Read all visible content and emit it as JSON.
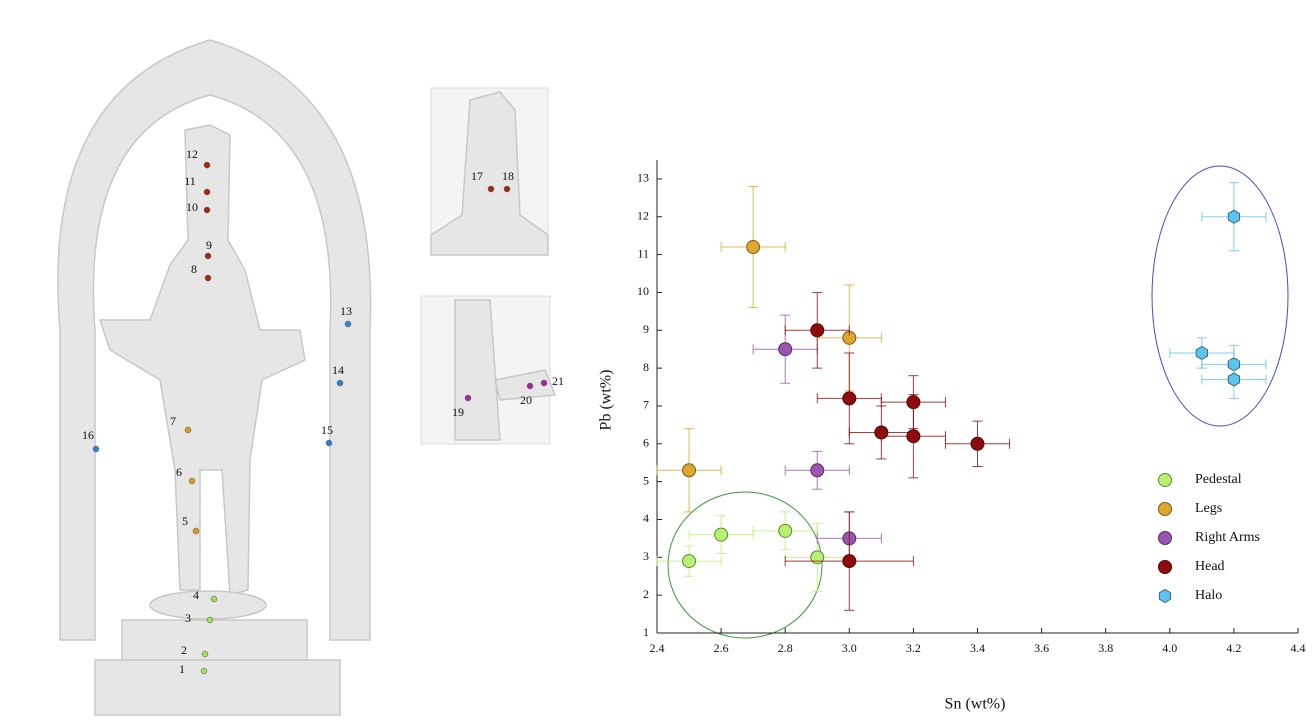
{
  "statue": {
    "points": [
      {
        "label": "1"
      },
      {
        "label": "2"
      },
      {
        "label": "3"
      },
      {
        "label": "4"
      },
      {
        "label": "5"
      },
      {
        "label": "6"
      },
      {
        "label": "7"
      },
      {
        "label": "8"
      },
      {
        "label": "9"
      },
      {
        "label": "10"
      },
      {
        "label": "11"
      },
      {
        "label": "12"
      },
      {
        "label": "13"
      },
      {
        "label": "14"
      },
      {
        "label": "15"
      },
      {
        "label": "16"
      },
      {
        "label": "17"
      },
      {
        "label": "18"
      },
      {
        "label": "19"
      },
      {
        "label": "20"
      },
      {
        "label": "21"
      }
    ]
  },
  "chart_data": {
    "type": "scatter",
    "x_label": "Sn (wt%)",
    "y_label": "Pb (wt%)",
    "xlim": [
      2.4,
      4.4
    ],
    "xticks": [
      2.4,
      2.6,
      2.8,
      {
        "value": 3,
        "label": "3.0"
      },
      3.2,
      3.4,
      3.6,
      3.8,
      {
        "value": 4,
        "label": "4.0"
      },
      4.2,
      4.4
    ],
    "ylim": [
      1,
      13.5
    ],
    "yticks": [
      1,
      2,
      3,
      4,
      5,
      6,
      7,
      8,
      9,
      10,
      11,
      12,
      13
    ],
    "legend": "lower right",
    "series": [
      {
        "name": "Pedestal",
        "color": "#b8f070",
        "marker": "circle",
        "x": [
          2.5,
          2.6,
          2.8,
          2.9
        ],
        "values": [
          2.9,
          3.6,
          3.7,
          3.0
        ],
        "x_err": [
          0.1,
          0.1,
          0.1,
          0.1
        ],
        "y_err": [
          0.4,
          0.5,
          0.5,
          0.9
        ]
      },
      {
        "name": "Legs",
        "color": "#dfa62e",
        "marker": "circle",
        "x": [
          2.7,
          3.0,
          2.5
        ],
        "values": [
          11.2,
          8.8,
          5.3
        ],
        "x_err": [
          0.1,
          0.1,
          0.1
        ],
        "y_err": [
          1.6,
          1.4,
          1.1
        ]
      },
      {
        "name": "Right Arms",
        "color": "#9a55b0",
        "marker": "circle",
        "x": [
          2.8,
          2.9,
          3.0
        ],
        "values": [
          8.5,
          5.3,
          3.5
        ],
        "x_err": [
          0.1,
          0.1,
          0.1
        ],
        "y_err": [
          0.9,
          0.5,
          0.7
        ]
      },
      {
        "name": "Head",
        "color": "#8e0c0c",
        "marker": "circle",
        "x": [
          2.9,
          3.0,
          3.1,
          3.2,
          3.2,
          3.4,
          3.0
        ],
        "values": [
          9.0,
          7.2,
          6.3,
          7.1,
          6.2,
          6.0,
          2.9
        ],
        "x_err": [
          0.1,
          0.1,
          0.1,
          0.1,
          0.1,
          0.1,
          0.2
        ],
        "y_err": [
          1.0,
          1.2,
          0.7,
          0.7,
          1.1,
          0.6,
          1.3
        ]
      },
      {
        "name": "Halo",
        "color": "#5ec3f0",
        "marker": "hexagon",
        "x": [
          4.2,
          4.1,
          4.2,
          4.2
        ],
        "values": [
          12.0,
          8.4,
          8.1,
          7.7
        ],
        "x_err": [
          0.1,
          0.1,
          0.1,
          0.1
        ],
        "y_err": [
          0.9,
          0.4,
          0.5,
          0.5
        ]
      }
    ]
  }
}
